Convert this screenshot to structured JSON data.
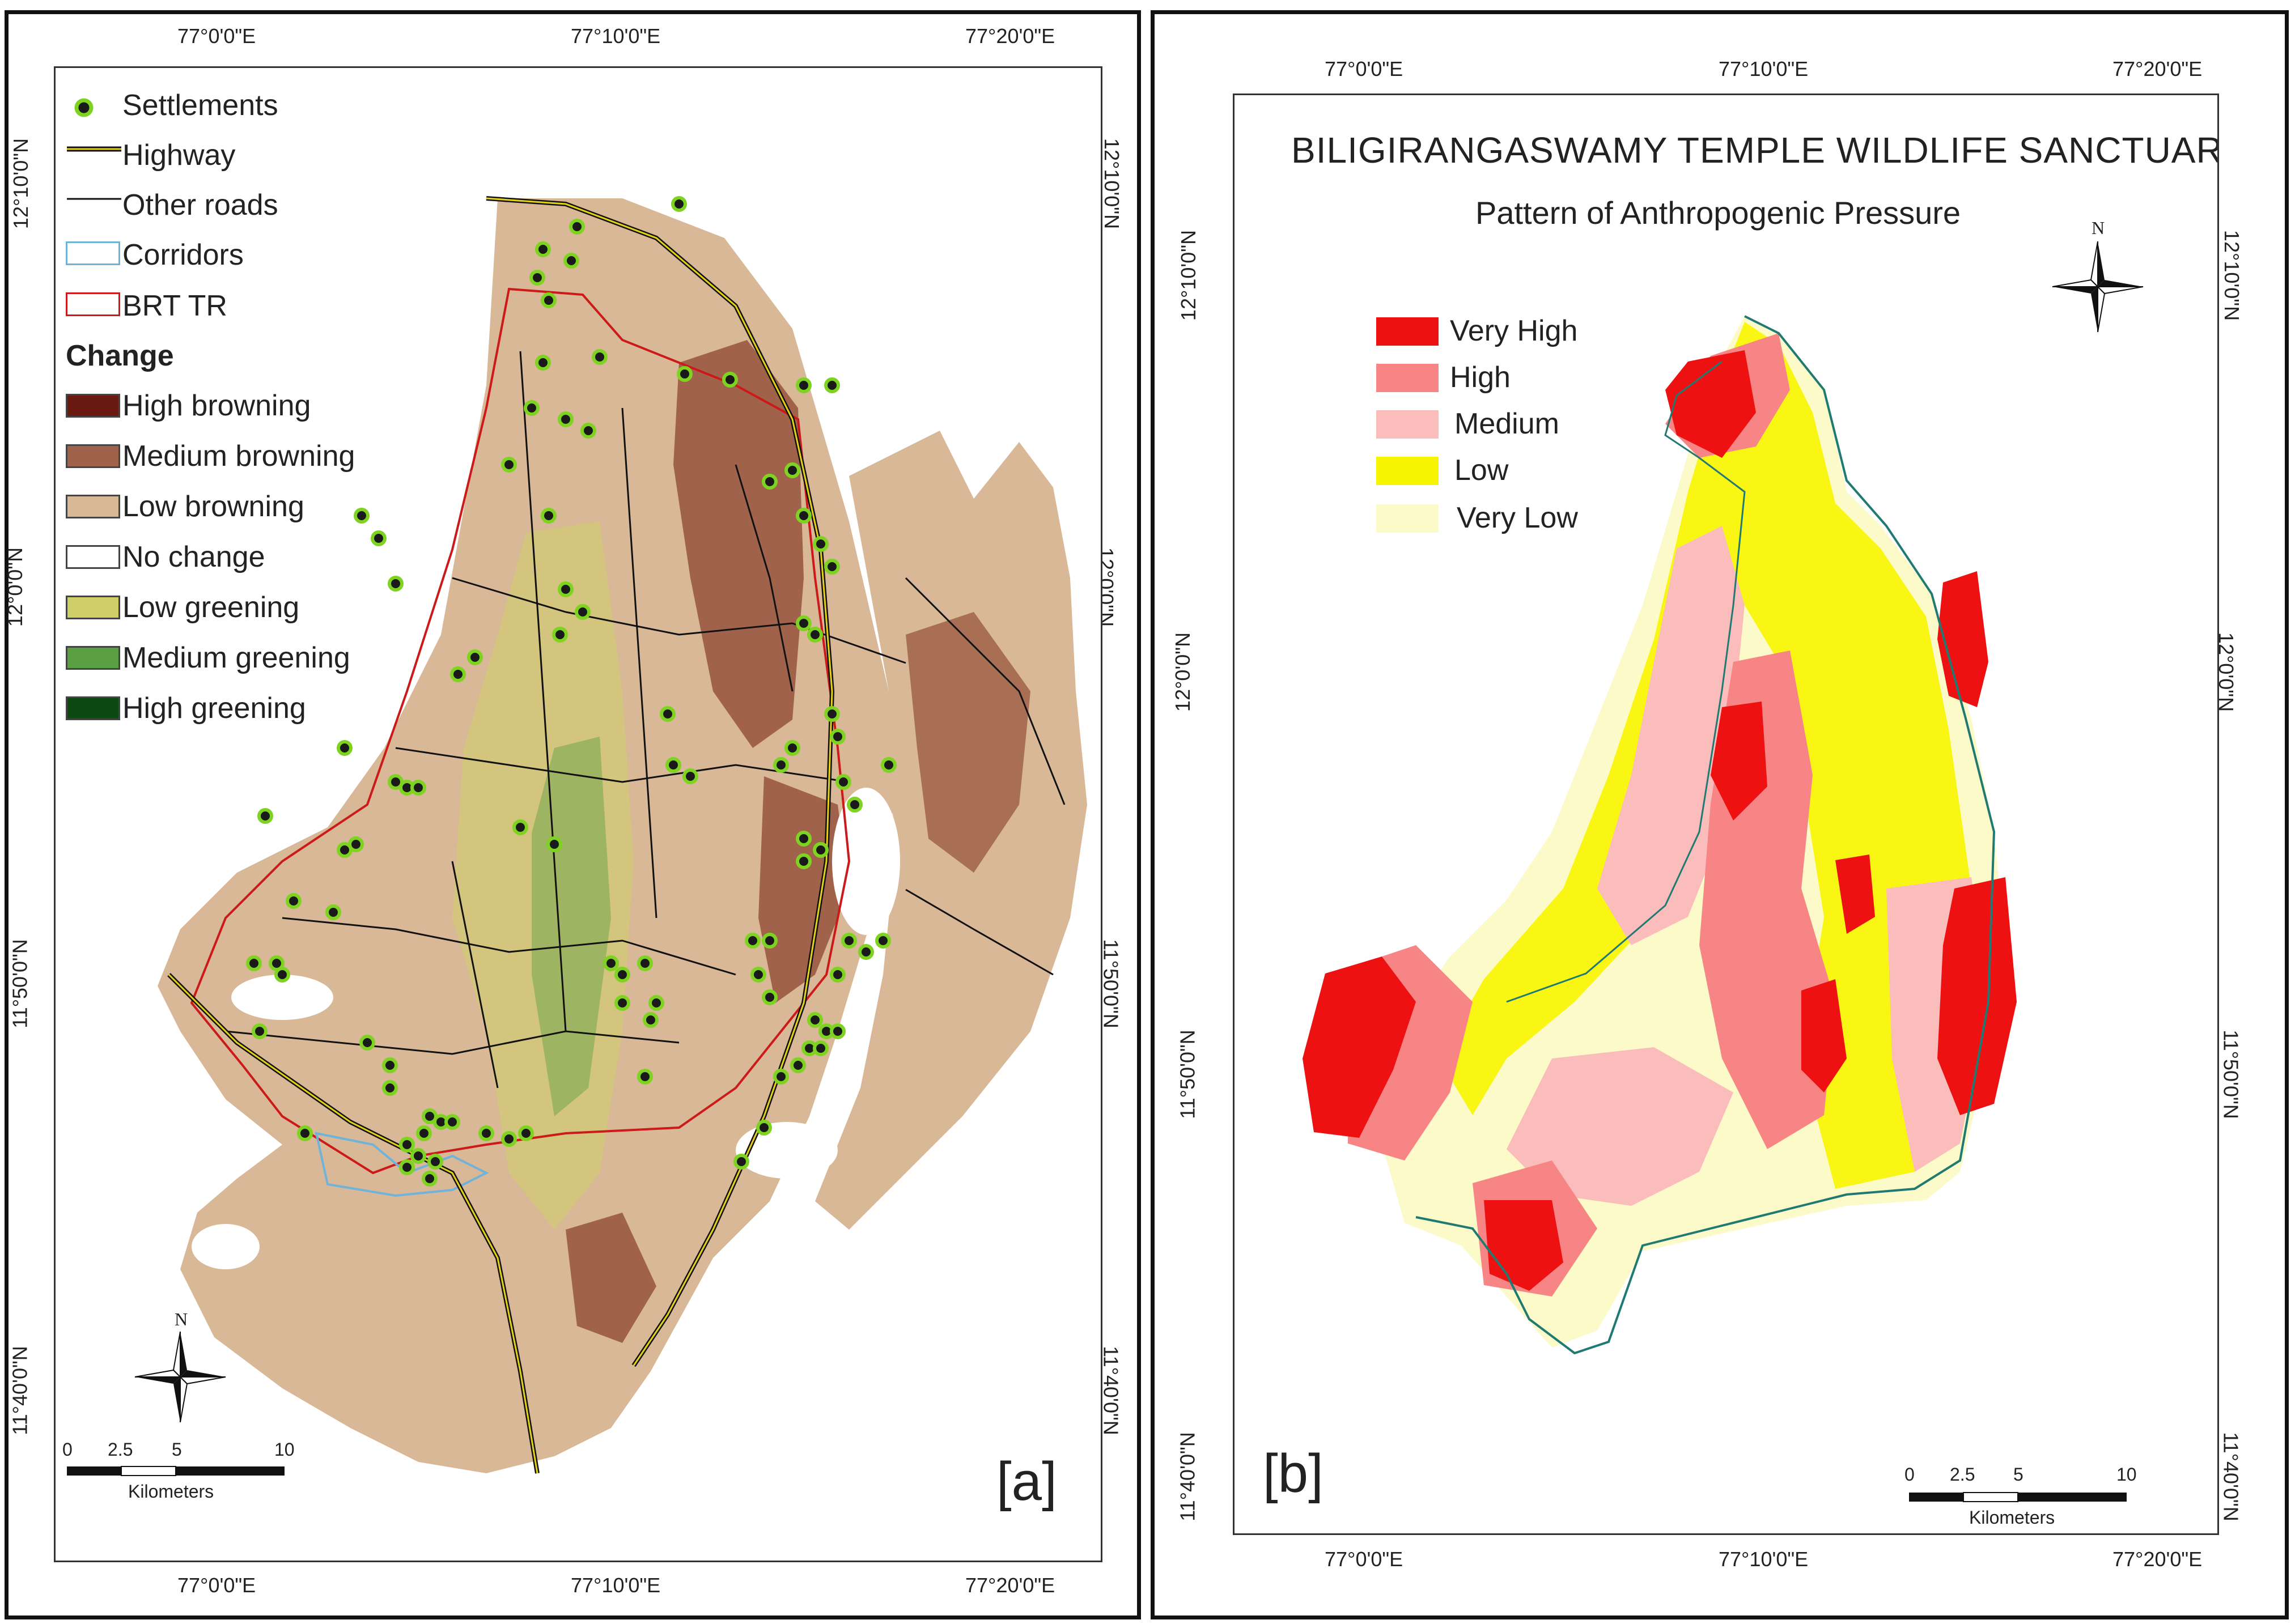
{
  "panel_a": {
    "tag": "[a]",
    "lon_ticks": [
      "77°0'0\"E",
      "77°10'0\"E",
      "77°20'0\"E"
    ],
    "lat_ticks": [
      "12°10'0\"N",
      "12°0'0\"N",
      "11°50'0\"N",
      "11°40'0\"N"
    ],
    "legend": {
      "settlements": "Settlements",
      "highway": "Highway",
      "other_roads": "Other roads",
      "corridors": "Corridors",
      "brt_tr": "BRT TR",
      "change_heading": "Change",
      "classes": [
        {
          "label": "High browning",
          "color": "#6b1a12"
        },
        {
          "label": "Medium browning",
          "color": "#a0624a"
        },
        {
          "label": "Low browning",
          "color": "#d8b896"
        },
        {
          "label": "No change",
          "color": "#ffffff"
        },
        {
          "label": "Low greening",
          "color": "#cfcf6a"
        },
        {
          "label": "Medium greening",
          "color": "#5aa043"
        },
        {
          "label": "High greening",
          "color": "#0d4a12"
        }
      ]
    },
    "scale": {
      "ticks": [
        "0",
        "2.5",
        "5",
        "10"
      ],
      "unit": "Kilometers"
    },
    "north": "N"
  },
  "panel_b": {
    "tag": "[b]",
    "title": "BILIGIRANGASWAMY TEMPLE WILDLIFE SANCTUARY",
    "subtitle": "Pattern of Anthropogenic Pressure",
    "lon_ticks": [
      "77°0'0\"E",
      "77°10'0\"E",
      "77°20'0\"E"
    ],
    "lat_ticks": [
      "12°10'0\"N",
      "12°0'0\"N",
      "11°50'0\"N",
      "11°40'0\"N"
    ],
    "legend": [
      {
        "label": "Very High",
        "color": "#ee1111"
      },
      {
        "label": "High",
        "color": "#f78585"
      },
      {
        "label": "Medium",
        "color": "#fbbcbc"
      },
      {
        "label": "Low",
        "color": "#f8f500"
      },
      {
        "label": "Very Low",
        "color": "#fcfac8"
      }
    ],
    "scale": {
      "ticks": [
        "0",
        "2.5",
        "5",
        "10"
      ],
      "unit": "Kilometers"
    },
    "north": "N"
  },
  "colors": {
    "settlement_fill": "#1a1a1a",
    "settlement_ring": "#7ed321",
    "boundary_red": "#cc1a1a",
    "corridor_blue": "#6fb4d8",
    "outline_teal": "#1f7a72"
  }
}
